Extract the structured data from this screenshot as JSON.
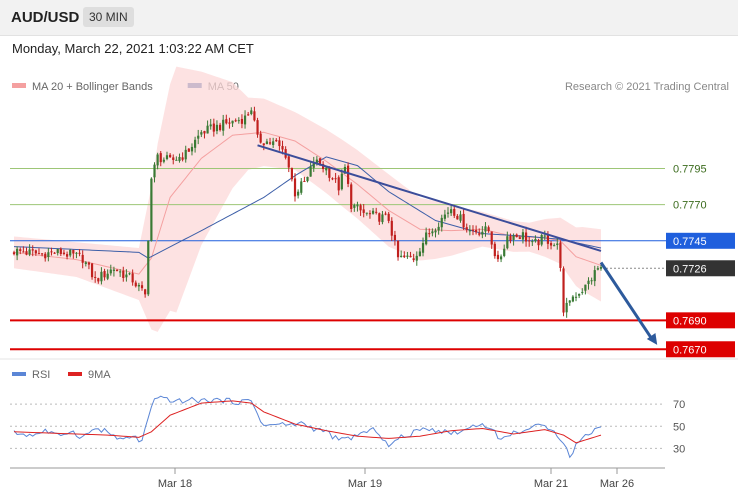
{
  "header": {
    "symbol": "AUD/USD",
    "timeframe": "30 MIN",
    "datetime": "Monday, March 22, 2021 1:03:22 AM CET"
  },
  "colors": {
    "bull": "#3a7a35",
    "bear": "#c0201e",
    "ma20": "#f4a0a0",
    "bands": "#fcd8d8",
    "ma50": "#3d5fa8",
    "trendline": "#3c4d9a",
    "support": "#dd0000",
    "resistance_blue": "#1f5fdd",
    "current_price": "#333333",
    "minor_level": "#9dc676",
    "rsi": "#5b86d6",
    "rsi_ma": "#dd2222"
  },
  "chart_data": [
    {
      "type": "candlestick",
      "title": "",
      "legend": {
        "position": "top-left",
        "items": [
          {
            "label": "MA 20 + Bollinger Bands",
            "color": "#f4a0a0"
          },
          {
            "label": "MA 50",
            "color": "#3d5fa8"
          }
        ]
      },
      "copyright": "Research © 2021 Trading Central",
      "ylim": [
        0.7665,
        0.787
      ],
      "x_ticks": [
        "Mar 18",
        "Mar 19",
        "Mar 21",
        "Mar 26"
      ],
      "price_levels": [
        {
          "label": "0.7795",
          "value": 0.7795,
          "style": "minor"
        },
        {
          "label": "0.7770",
          "value": 0.777,
          "style": "minor"
        },
        {
          "label": "0.7745",
          "value": 0.7745,
          "style": "resistance"
        },
        {
          "label": "0.7726",
          "value": 0.7726,
          "style": "current"
        },
        {
          "label": "0.7690",
          "value": 0.769,
          "style": "support"
        },
        {
          "label": "0.7670",
          "value": 0.767,
          "style": "support"
        }
      ],
      "close_anchors": [
        [
          0,
          0.7738
        ],
        [
          8,
          0.7736
        ],
        [
          15,
          0.7737
        ],
        [
          22,
          0.7733
        ],
        [
          26,
          0.7718
        ],
        [
          32,
          0.7726
        ],
        [
          38,
          0.7718
        ],
        [
          42,
          0.7707
        ],
        [
          43,
          0.7748
        ],
        [
          44,
          0.7788
        ],
        [
          46,
          0.7803
        ],
        [
          50,
          0.78
        ],
        [
          55,
          0.7805
        ],
        [
          60,
          0.782
        ],
        [
          68,
          0.7826
        ],
        [
          74,
          0.783
        ],
        [
          76,
          0.7837
        ],
        [
          78,
          0.7815
        ],
        [
          84,
          0.7812
        ],
        [
          87,
          0.7805
        ],
        [
          90,
          0.7778
        ],
        [
          94,
          0.7788
        ],
        [
          96,
          0.78
        ],
        [
          100,
          0.7795
        ],
        [
          104,
          0.7782
        ],
        [
          106,
          0.7795
        ],
        [
          108,
          0.777
        ],
        [
          112,
          0.7764
        ],
        [
          120,
          0.776
        ],
        [
          123,
          0.7733
        ],
        [
          128,
          0.7733
        ],
        [
          132,
          0.7748
        ],
        [
          140,
          0.7768
        ],
        [
          146,
          0.7752
        ],
        [
          152,
          0.7752
        ],
        [
          155,
          0.7729
        ],
        [
          158,
          0.7748
        ],
        [
          163,
          0.7749
        ],
        [
          166,
          0.7742
        ],
        [
          170,
          0.7747
        ],
        [
          174,
          0.7741
        ],
        [
          175,
          0.7729
        ],
        [
          176,
          0.7693
        ],
        [
          178,
          0.7705
        ],
        [
          183,
          0.7713
        ],
        [
          187,
          0.7726
        ]
      ],
      "ma20": [
        [
          0,
          0.7737
        ],
        [
          20,
          0.7732
        ],
        [
          40,
          0.7722
        ],
        [
          44,
          0.7733
        ],
        [
          50,
          0.7775
        ],
        [
          60,
          0.7802
        ],
        [
          70,
          0.7818
        ],
        [
          80,
          0.782
        ],
        [
          90,
          0.7814
        ],
        [
          100,
          0.78
        ],
        [
          110,
          0.7784
        ],
        [
          120,
          0.7766
        ],
        [
          130,
          0.7753
        ],
        [
          140,
          0.7752
        ],
        [
          150,
          0.7753
        ],
        [
          160,
          0.7748
        ],
        [
          170,
          0.7747
        ],
        [
          175,
          0.7745
        ],
        [
          180,
          0.7734
        ],
        [
          188,
          0.7728
        ]
      ],
      "bollinger_band_width": [
        [
          0,
          0.0011
        ],
        [
          20,
          0.0012
        ],
        [
          40,
          0.0018
        ],
        [
          46,
          0.0065
        ],
        [
          52,
          0.0085
        ],
        [
          60,
          0.006
        ],
        [
          75,
          0.0025
        ],
        [
          90,
          0.002
        ],
        [
          105,
          0.0023
        ],
        [
          120,
          0.0025
        ],
        [
          135,
          0.002
        ],
        [
          150,
          0.0012
        ],
        [
          165,
          0.001
        ],
        [
          175,
          0.0016
        ],
        [
          182,
          0.0022
        ],
        [
          188,
          0.0025
        ]
      ],
      "ma50": [
        [
          0,
          0.7741
        ],
        [
          20,
          0.7739
        ],
        [
          40,
          0.7737
        ],
        [
          43,
          0.7733
        ],
        [
          60,
          0.7752
        ],
        [
          80,
          0.7775
        ],
        [
          90,
          0.779
        ],
        [
          100,
          0.7803
        ],
        [
          110,
          0.7797
        ],
        [
          120,
          0.7779
        ],
        [
          135,
          0.7759
        ],
        [
          150,
          0.775
        ],
        [
          165,
          0.7748
        ],
        [
          175,
          0.7746
        ],
        [
          188,
          0.774
        ]
      ],
      "trendline": [
        [
          78,
          0.7811
        ],
        [
          188,
          0.7738
        ]
      ],
      "resistance_line": [
        [
          0,
          0.7745
        ],
        [
          188,
          0.7745
        ]
      ],
      "forecast_arrow": [
        [
          188,
          0.773
        ],
        [
          206,
          0.7673
        ]
      ]
    },
    {
      "type": "line",
      "title": "",
      "legend": {
        "position": "top-left",
        "items": [
          {
            "label": "RSI",
            "color": "#5b86d6"
          },
          {
            "label": "9MA",
            "color": "#dd2222"
          }
        ]
      },
      "ylim": [
        24,
        80
      ],
      "y_ticks": [
        {
          "label": "70",
          "value": 70
        },
        {
          "label": "50",
          "value": 50
        },
        {
          "label": "30",
          "value": 30
        }
      ],
      "series": [
        {
          "name": "RSI",
          "x": [
            0,
            6,
            10,
            14,
            18,
            22,
            26,
            30,
            34,
            38,
            41,
            43,
            45,
            48,
            52,
            56,
            60,
            64,
            68,
            72,
            76,
            78,
            80,
            84,
            88,
            92,
            96,
            100,
            104,
            108,
            112,
            116,
            120,
            124,
            128,
            132,
            136,
            140,
            144,
            148,
            152,
            156,
            160,
            164,
            168,
            172,
            176,
            178,
            180,
            184,
            188
          ],
          "values": [
            44,
            42,
            46,
            41,
            46,
            40,
            48,
            45,
            37,
            41,
            36,
            58,
            73,
            76,
            72,
            74,
            73,
            74,
            73,
            72,
            73,
            62,
            50,
            52,
            51,
            53,
            48,
            45,
            37,
            40,
            44,
            47,
            32,
            40,
            44,
            49,
            46,
            44,
            46,
            52,
            50,
            38,
            44,
            47,
            50,
            49,
            36,
            22,
            33,
            44,
            50
          ]
        },
        {
          "name": "9MA",
          "x": [
            0,
            10,
            20,
            30,
            40,
            44,
            50,
            60,
            70,
            76,
            80,
            90,
            100,
            110,
            120,
            130,
            140,
            150,
            160,
            170,
            176,
            180,
            188
          ],
          "values": [
            45,
            44,
            43,
            42,
            40,
            45,
            60,
            71,
            73,
            71,
            63,
            52,
            46,
            41,
            39,
            41,
            46,
            48,
            43,
            47,
            42,
            35,
            42
          ]
        }
      ]
    }
  ]
}
